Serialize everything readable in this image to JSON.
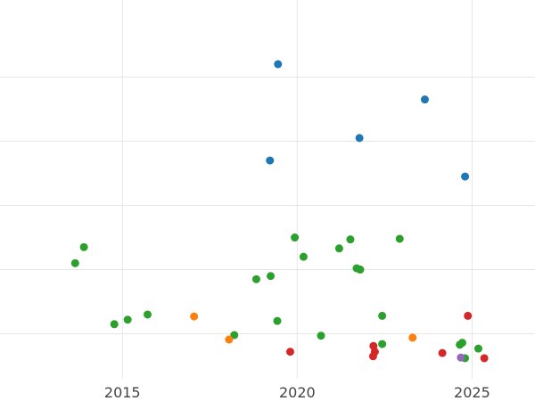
{
  "chart_data": {
    "type": "scatter",
    "title": "",
    "xlabel": "",
    "ylabel": "",
    "grid": true,
    "legend": "none",
    "xlim": [
      2011.5,
      2026.8
    ],
    "ylim": [
      -0.2,
      5.7
    ],
    "x_ticks": [
      2015,
      2020,
      2025
    ],
    "x_tick_labels": [
      "2015",
      "2020",
      "2025"
    ],
    "y_ticks": [
      0.5,
      1.5,
      2.5,
      3.5,
      4.5
    ],
    "series": [
      {
        "color": "#1f77b4",
        "points": [
          {
            "x": 2019.45,
            "y": 4.7
          },
          {
            "x": 2023.65,
            "y": 4.15
          },
          {
            "x": 2021.78,
            "y": 3.55
          },
          {
            "x": 2019.22,
            "y": 3.2
          },
          {
            "x": 2024.8,
            "y": 2.95
          }
        ]
      },
      {
        "color": "#2ca02c",
        "points": [
          {
            "x": 2013.9,
            "y": 1.85
          },
          {
            "x": 2013.65,
            "y": 1.6
          },
          {
            "x": 2014.77,
            "y": 0.65
          },
          {
            "x": 2015.15,
            "y": 0.72
          },
          {
            "x": 2015.72,
            "y": 0.8
          },
          {
            "x": 2018.2,
            "y": 0.48
          },
          {
            "x": 2018.83,
            "y": 1.35
          },
          {
            "x": 2019.24,
            "y": 1.4
          },
          {
            "x": 2019.43,
            "y": 0.7
          },
          {
            "x": 2019.93,
            "y": 2.0
          },
          {
            "x": 2020.18,
            "y": 1.7
          },
          {
            "x": 2020.68,
            "y": 0.47
          },
          {
            "x": 2021.2,
            "y": 1.83
          },
          {
            "x": 2021.52,
            "y": 1.97
          },
          {
            "x": 2021.7,
            "y": 1.52
          },
          {
            "x": 2021.8,
            "y": 1.5
          },
          {
            "x": 2022.43,
            "y": 0.78
          },
          {
            "x": 2022.43,
            "y": 0.34
          },
          {
            "x": 2022.93,
            "y": 1.98
          },
          {
            "x": 2024.65,
            "y": 0.33
          },
          {
            "x": 2024.72,
            "y": 0.36
          },
          {
            "x": 2024.8,
            "y": 0.12
          },
          {
            "x": 2025.18,
            "y": 0.27
          }
        ]
      },
      {
        "color": "#ff7f0e",
        "points": [
          {
            "x": 2017.05,
            "y": 0.77
          },
          {
            "x": 2018.05,
            "y": 0.41
          },
          {
            "x": 2023.3,
            "y": 0.44
          }
        ]
      },
      {
        "color": "#d62728",
        "points": [
          {
            "x": 2019.8,
            "y": 0.22
          },
          {
            "x": 2022.18,
            "y": 0.31
          },
          {
            "x": 2022.22,
            "y": 0.22
          },
          {
            "x": 2022.17,
            "y": 0.15
          },
          {
            "x": 2024.15,
            "y": 0.2
          },
          {
            "x": 2024.88,
            "y": 0.78
          },
          {
            "x": 2025.35,
            "y": 0.12
          }
        ]
      },
      {
        "color": "#9467bd",
        "points": [
          {
            "x": 2024.68,
            "y": 0.13
          }
        ]
      }
    ]
  }
}
